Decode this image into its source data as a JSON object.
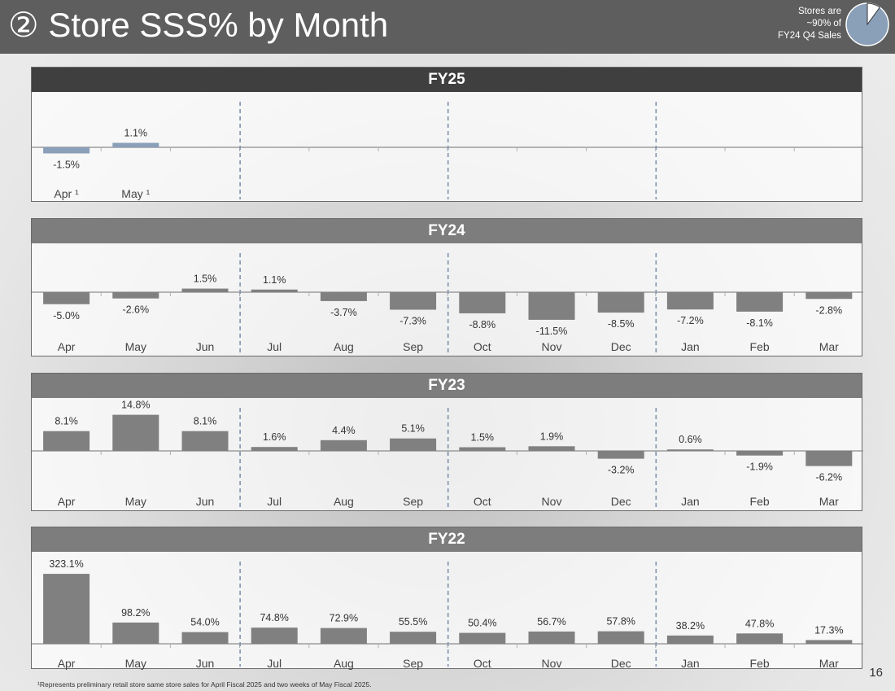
{
  "header": {
    "title": "② Store SSS% by Month",
    "note_lines": [
      "Stores are",
      "~90% of",
      "FY24 Q4 Sales"
    ],
    "colors": {
      "bar": "#828282",
      "header_bg": "#5e5e5e"
    }
  },
  "chart_data": [
    {
      "type": "bar",
      "title": "FY25",
      "categories": [
        "Apr ¹",
        "May ¹"
      ],
      "values": [
        -1.5,
        1.1
      ],
      "labels": [
        "-1.5%",
        "1.1%"
      ],
      "bar_color": "#8a9fb8",
      "header_color": "#3f3f3f"
    },
    {
      "type": "bar",
      "title": "FY24",
      "categories": [
        "Apr",
        "May",
        "Jun",
        "Jul",
        "Aug",
        "Sep",
        "Oct",
        "Nov",
        "Dec",
        "Jan",
        "Feb",
        "Mar"
      ],
      "values": [
        -5.0,
        -2.6,
        1.5,
        1.1,
        -3.7,
        -7.3,
        -8.8,
        -11.5,
        -8.5,
        -7.2,
        -8.1,
        -2.8
      ],
      "labels": [
        "-5.0%",
        "-2.6%",
        "1.5%",
        "1.1%",
        "-3.7%",
        "-7.3%",
        "-8.8%",
        "-11.5%",
        "-8.5%",
        "-7.2%",
        "-8.1%",
        "-2.8%"
      ],
      "bar_color": "#808080",
      "header_color": "#7d7d7d"
    },
    {
      "type": "bar",
      "title": "FY23",
      "categories": [
        "Apr",
        "May",
        "Jun",
        "Jul",
        "Aug",
        "Sep",
        "Oct",
        "Nov",
        "Dec",
        "Jan",
        "Feb",
        "Mar"
      ],
      "values": [
        8.1,
        14.8,
        8.1,
        1.6,
        4.4,
        5.1,
        1.5,
        1.9,
        -3.2,
        0.6,
        -1.9,
        -6.2
      ],
      "labels": [
        "8.1%",
        "14.8%",
        "8.1%",
        "1.6%",
        "4.4%",
        "5.1%",
        "1.5%",
        "1.9%",
        "-3.2%",
        "0.6%",
        "-1.9%",
        "-6.2%"
      ],
      "bar_color": "#808080",
      "header_color": "#7d7d7d"
    },
    {
      "type": "bar",
      "title": "FY22",
      "categories": [
        "Apr",
        "May",
        "Jun",
        "Jul",
        "Aug",
        "Sep",
        "Oct",
        "Nov",
        "Dec",
        "Jan",
        "Feb",
        "Mar"
      ],
      "values": [
        323.1,
        98.2,
        54.0,
        74.8,
        72.9,
        55.5,
        50.4,
        56.7,
        57.8,
        38.2,
        47.8,
        17.3
      ],
      "labels": [
        "323.1%",
        "98.2%",
        "54.0%",
        "74.8%",
        "72.9%",
        "55.5%",
        "50.4%",
        "56.7%",
        "57.8%",
        "38.2%",
        "47.8%",
        "17.3%"
      ],
      "bar_color": "#808080",
      "header_color": "#7d7d7d"
    }
  ],
  "footnote": "¹Represents preliminary retail store same store sales for April Fiscal 2025 and two weeks of May Fiscal 2025.",
  "page_number": "16"
}
